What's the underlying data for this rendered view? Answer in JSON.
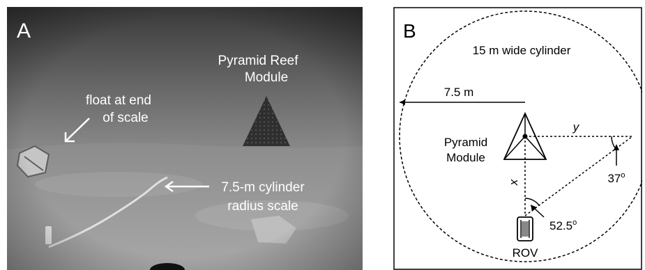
{
  "panel_a": {
    "label": "A",
    "annotations": {
      "module_line1": "Pyramid Reef",
      "module_line2": "Module",
      "float_line1": "float  at end",
      "float_line2": "of scale",
      "scale_line1": "7.5-m cylinder",
      "scale_line2": "radius scale"
    }
  },
  "panel_b": {
    "label": "B",
    "cylinder_label": "15 m wide cylinder",
    "radius_label": "7.5 m",
    "module_line1": "Pyramid",
    "module_line2": "Module",
    "x_label": "x",
    "y_label": "y",
    "angle_right": "37",
    "angle_bottom": "52.5",
    "degree_symbol": "o",
    "rov_label": "ROV"
  }
}
